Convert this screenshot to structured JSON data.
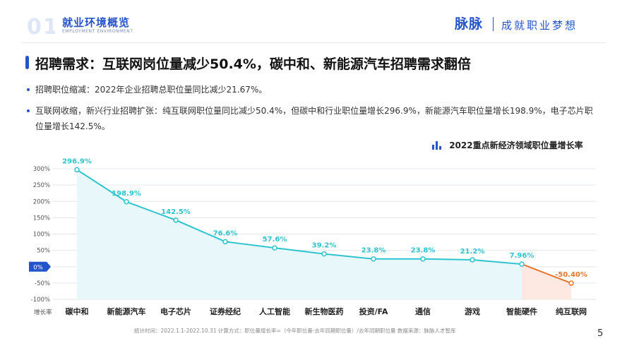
{
  "header": {
    "section_number": "01",
    "section_title": "就业环境概览",
    "section_subtitle": "EMPLOYMENT ENVIRONMENT",
    "brand": "脉脉",
    "slogan": "成就职业梦想"
  },
  "page": {
    "title": "招聘需求：互联网岗位量减少50.4%，碳中和、新能源汽车招聘需求翻倍",
    "bullets": [
      "招聘职位缩减：2022年企业招聘总职位量同比减少21.67%。",
      "互联网收缩，新兴行业招聘扩张：纯互联网职位量同比减少50.4%，但碳中和行业职位量增长296.9%，新能源汽车职位量增长198.9%，电子芯片职位量增长142.5%。"
    ],
    "footnote": "统计时间：2022.1.1-2022.10.31    计算方式：职位量增长率=（今年职位量-去年同期职位量）/去年同期职位量    数据来源：脉脉人才智库",
    "page_number": "5"
  },
  "colors": {
    "brand": "#2553c9",
    "line_positive": "#2ec4cf",
    "fill_positive": "#e8f8fa",
    "line_negative": "#e2762c",
    "fill_negative": "#fde8e2",
    "zero_badge": "#2553c9"
  },
  "chart_data": {
    "type": "area",
    "title": "2022重点新经济领域职位量增长率",
    "categories": [
      "碳中和",
      "新能源汽车",
      "电子芯片",
      "证券经纪",
      "人工智能",
      "新生物医药",
      "投资/FA",
      "通信",
      "游戏",
      "智能硬件",
      "纯互联网"
    ],
    "values": [
      296.9,
      198.9,
      142.5,
      76.6,
      57.6,
      39.2,
      23.8,
      23.8,
      21.2,
      7.96,
      -50.4
    ],
    "value_labels": [
      "296.9%",
      "198.9%",
      "142.5%",
      "76.6%",
      "57.6%",
      "39.2%",
      "23.8%",
      "23.8%",
      "21.2%",
      "7.96%",
      "-50.40%"
    ],
    "xlabel": "增长率",
    "ylabel": "",
    "yticks": [
      "300%",
      "250%",
      "200%",
      "150%",
      "100%",
      "50%",
      "0%",
      "-50%",
      "-100%"
    ],
    "ylim": [
      -100,
      300
    ],
    "grid": true
  }
}
